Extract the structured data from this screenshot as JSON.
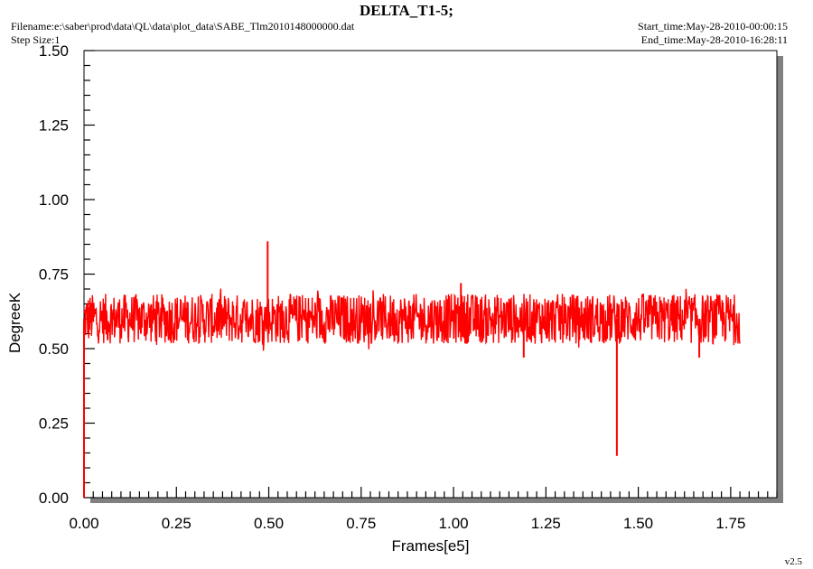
{
  "header": {
    "title": "DELTA_T1-5;",
    "filename": "Filename:e:\\saber\\prod\\data\\QL\\data\\plot_data\\SABE_Tlm2010148000000.dat",
    "step_size": "Step Size:1",
    "start_time": "Start_time:May-28-2010-00:00:15",
    "end_time": "End_time:May-28-2010-16:28:11",
    "version": "v2.5"
  },
  "colors": {
    "series": "#ff0000",
    "shadow": "#808080",
    "plot_bg": "#ffffff"
  },
  "chart_data": {
    "type": "line",
    "xlabel": "Frames[e5]",
    "ylabel": "DegreeK",
    "xlim": [
      0,
      1.875
    ],
    "ylim": [
      0,
      1.5
    ],
    "x_ticks": [
      "0.00",
      "0.25",
      "0.50",
      "0.75",
      "1.00",
      "1.25",
      "1.50",
      "1.75"
    ],
    "y_ticks": [
      "0.00",
      "0.25",
      "0.50",
      "0.75",
      "1.00",
      "1.25",
      "1.50"
    ],
    "series": [
      {
        "noise_band": {
          "x_start": 0.0,
          "x_end": 1.775,
          "y_low": 0.51,
          "y_high": 0.67,
          "center": 0.6
        },
        "features": [
          {
            "x": 0.0,
            "y": 0.0,
            "kind": "start-drop"
          },
          {
            "x": 0.497,
            "y": 0.86,
            "kind": "spike"
          },
          {
            "x": 1.442,
            "y": 0.14,
            "kind": "dip"
          },
          {
            "x": 1.19,
            "y": 0.47,
            "kind": "dip"
          },
          {
            "x": 1.02,
            "y": 0.72,
            "kind": "spike"
          },
          {
            "x": 1.665,
            "y": 0.47,
            "kind": "dip"
          }
        ]
      }
    ]
  }
}
